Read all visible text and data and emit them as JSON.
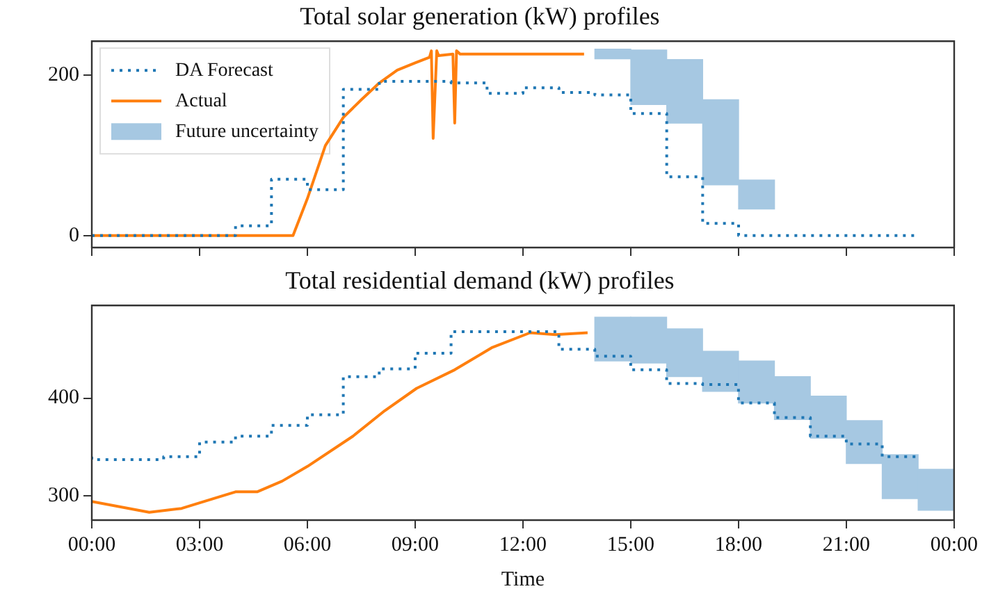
{
  "chart_data": [
    {
      "type": "line",
      "title": "Total solar generation (kW) profiles",
      "xlim": [
        0,
        24
      ],
      "xticks": [
        {
          "value": 0,
          "label": null
        },
        {
          "value": 3,
          "label": null
        },
        {
          "value": 6,
          "label": null
        },
        {
          "value": 9,
          "label": null
        },
        {
          "value": 12,
          "label": null
        },
        {
          "value": 15,
          "label": null
        },
        {
          "value": 18,
          "label": null
        },
        {
          "value": 21,
          "label": null
        },
        {
          "value": 24,
          "label": null
        }
      ],
      "ylim": [
        -15,
        242
      ],
      "yticks": [
        0,
        200
      ],
      "tick_labels": "y",
      "grid": false,
      "legend": "top left",
      "series": [
        {
          "name": "DA Forecast",
          "type": "step",
          "color": "#1f77b4",
          "line_style": "dotted",
          "x": [
            0,
            1,
            2,
            3,
            4,
            5,
            6,
            7,
            8,
            9,
            10,
            11,
            12,
            13,
            14,
            15,
            16,
            17,
            18,
            19,
            20,
            21,
            22,
            23
          ],
          "values": [
            0,
            0,
            0,
            0,
            0,
            12,
            70,
            57,
            182,
            192,
            192,
            190,
            177,
            184,
            178,
            175,
            152,
            73,
            15,
            0,
            0,
            0,
            0,
            0
          ]
        },
        {
          "name": "Actual",
          "color": "#ff7f0e",
          "line_style": "solid",
          "x": [
            0,
            5.6,
            6,
            6.5,
            7,
            7.5,
            8,
            8.5,
            9,
            9.4,
            9.45,
            9.5,
            9.6,
            9.65,
            10.05,
            10.1,
            10.15,
            10.25,
            13.7
          ],
          "values": [
            0,
            0,
            46,
            112,
            147,
            169,
            190,
            206,
            215,
            222,
            230,
            121,
            230,
            224,
            226,
            140,
            230,
            226,
            226
          ]
        },
        {
          "name": "Future uncertainty",
          "type": "bar",
          "color": "#a6c8e2",
          "x": [
            14.5,
            15.5,
            16.5,
            17.5,
            18.5
          ],
          "base": [
            220,
            163,
            140,
            63,
            33
          ],
          "values": [
            12,
            68,
            79,
            106,
            36
          ]
        }
      ]
    },
    {
      "type": "line",
      "title": "Total residential demand (kW) profiles",
      "xlabel": "Time",
      "xlim": [
        0,
        24
      ],
      "xticks": [
        {
          "value": 0,
          "label": "00:00"
        },
        {
          "value": 3,
          "label": "03:00"
        },
        {
          "value": 6,
          "label": "06:00"
        },
        {
          "value": 9,
          "label": "09:00"
        },
        {
          "value": 12,
          "label": "12:00"
        },
        {
          "value": 15,
          "label": "15:00"
        },
        {
          "value": 18,
          "label": "18:00"
        },
        {
          "value": 21,
          "label": "21:00"
        },
        {
          "value": 24,
          "label": "00:00"
        }
      ],
      "ylim": [
        275,
        495
      ],
      "yticks": [
        300,
        400
      ],
      "grid": false,
      "legend": false,
      "series": [
        {
          "type": "step",
          "color": "#1f77b4",
          "line_style": "dotted",
          "x": [
            0,
            1,
            2,
            3,
            4,
            5,
            6,
            7,
            8,
            9,
            10,
            11,
            12,
            13,
            14,
            15,
            16,
            17,
            18,
            19,
            20,
            21,
            22,
            23
          ],
          "values": [
            340,
            337,
            337,
            340,
            355,
            361,
            372,
            383,
            422,
            430,
            446,
            468,
            468,
            468,
            450,
            443,
            429,
            415,
            414,
            395,
            380,
            361,
            353,
            340
          ]
        },
        {
          "color": "#ff7f0e",
          "line_style": "solid",
          "x": [
            0,
            1.6,
            2.5,
            2.94,
            3.65,
            4,
            4.6,
            5.3,
            6,
            7.27,
            8.15,
            9.04,
            10.1,
            11.15,
            12.2,
            12.9,
            13.8
          ],
          "values": [
            294,
            283,
            287,
            292,
            300,
            304,
            304,
            315,
            330,
            361,
            387,
            410,
            429,
            452,
            467,
            465,
            467
          ]
        },
        {
          "type": "bar",
          "color": "#a6c8e2",
          "x": [
            14.5,
            15.5,
            16.5,
            17.5,
            18.5,
            19.5,
            20.5,
            21.5,
            22.5,
            23.5
          ],
          "base": [
            438,
            436,
            422,
            407,
            395,
            378,
            359,
            333,
            297,
            285
          ],
          "values": [
            45,
            47,
            49,
            41,
            43,
            44,
            43,
            44,
            45,
            42
          ]
        }
      ]
    }
  ]
}
